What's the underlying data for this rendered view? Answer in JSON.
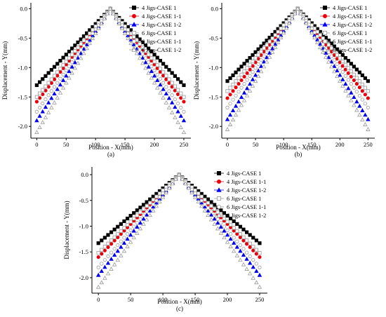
{
  "figure": {
    "colors": {
      "black": "#000000",
      "red": "#e8000b",
      "blue": "#0000ee",
      "hollow": "#9a9a9a"
    }
  },
  "chart_data": [
    {
      "type": "scatter",
      "label": "(a)",
      "xlabel": "Position - X(mm)",
      "ylabel": "Displacement - Y(mm)",
      "xlim": [
        -10,
        262
      ],
      "ylim": [
        -2.2,
        0.1
      ],
      "xticks": [
        0,
        50,
        100,
        150,
        200,
        250
      ],
      "yticks": [
        0.0,
        -0.5,
        -1.0,
        -1.5,
        -2.0
      ],
      "xtick_labels": [
        "0",
        "50",
        "100",
        "150",
        "200",
        "250"
      ],
      "ytick_labels": [
        "0.0",
        "-0.5",
        "-1.0",
        "-1.5",
        "-2.0"
      ],
      "legend": "top-right",
      "peak_x": 125,
      "series": [
        {
          "name": "4 Jigs-CASE 1",
          "marker": "square",
          "fill": "black",
          "edge_value": -1.3,
          "peak_value": 0.0
        },
        {
          "name": "4 Jigs-CASE 1-1",
          "marker": "circle",
          "fill": "red",
          "edge_value": -1.58,
          "peak_value": 0.0
        },
        {
          "name": "4 Jigs-CASE 1-2",
          "marker": "triangle",
          "fill": "blue",
          "edge_value": -1.9,
          "peak_value": 0.0
        },
        {
          "name": "6 Jigs-CASE 1",
          "marker": "square",
          "fill": "none",
          "edge_value": -1.5,
          "peak_value": 0.0
        },
        {
          "name": "6 Jigs-CASE 1-1",
          "marker": "circle",
          "fill": "none",
          "edge_value": -1.75,
          "peak_value": 0.0
        },
        {
          "name": "6 Jigs-CASE 1-2",
          "marker": "triangle",
          "fill": "none",
          "edge_value": -2.1,
          "peak_value": 0.0
        }
      ]
    },
    {
      "type": "scatter",
      "label": "(b)",
      "xlabel": "Position - X(mm)",
      "ylabel": "Displacement - Y(mm)",
      "xlim": [
        -10,
        262
      ],
      "ylim": [
        -2.2,
        0.1
      ],
      "xticks": [
        0,
        50,
        100,
        150,
        200,
        250
      ],
      "yticks": [
        0.0,
        -0.5,
        -1.0,
        -1.5,
        -2.0
      ],
      "xtick_labels": [
        "0",
        "50",
        "100",
        "150",
        "200",
        "250"
      ],
      "ytick_labels": [
        "0.0",
        "-0.5",
        "-1.0",
        "-1.5",
        "-2.0"
      ],
      "legend": "top-right",
      "peak_x": 125,
      "series": [
        {
          "name": "4 Jigs-CASE 1",
          "marker": "square",
          "fill": "black",
          "edge_value": -1.23,
          "peak_value": 0.0
        },
        {
          "name": "4 Jigs-CASE 1-1",
          "marker": "circle",
          "fill": "red",
          "edge_value": -1.52,
          "peak_value": 0.0
        },
        {
          "name": "4 Jigs-CASE 1-2",
          "marker": "triangle",
          "fill": "blue",
          "edge_value": -1.88,
          "peak_value": 0.0
        },
        {
          "name": "6 Jigs-CASE 1",
          "marker": "square",
          "fill": "none",
          "edge_value": -1.4,
          "peak_value": 0.0
        },
        {
          "name": "6 Jigs-CASE 1-1",
          "marker": "circle",
          "fill": "none",
          "edge_value": -1.68,
          "peak_value": 0.0
        },
        {
          "name": "6 Jigs-CASE 1-2",
          "marker": "triangle",
          "fill": "none",
          "edge_value": -2.05,
          "peak_value": 0.0
        }
      ]
    },
    {
      "type": "scatter",
      "label": "(c)",
      "xlabel": "Position - X(mm)",
      "ylabel": "Displacement - Y(mm)",
      "xlim": [
        -10,
        262
      ],
      "ylim": [
        -2.3,
        0.15
      ],
      "xticks": [
        0,
        50,
        100,
        150,
        200,
        250
      ],
      "yticks": [
        0.0,
        -0.5,
        -1.0,
        -1.5,
        -2.0
      ],
      "xtick_labels": [
        "0",
        "50",
        "100",
        "150",
        "200",
        "250"
      ],
      "ytick_labels": [
        "0.0",
        "-0.5",
        "-1.0",
        "-1.5",
        "-2.0"
      ],
      "legend": "top-right",
      "peak_x": 125,
      "series": [
        {
          "name": "4 Jigs-CASE 1",
          "marker": "square",
          "fill": "black",
          "edge_value": -1.33,
          "peak_value": 0.0
        },
        {
          "name": "4 Jigs-CASE 1-1",
          "marker": "circle",
          "fill": "red",
          "edge_value": -1.6,
          "peak_value": 0.0
        },
        {
          "name": "4 Jigs-CASE 1-2",
          "marker": "triangle",
          "fill": "blue",
          "edge_value": -1.95,
          "peak_value": 0.0
        },
        {
          "name": "6 Jigs-CASE 1",
          "marker": "square",
          "fill": "none",
          "edge_value": -1.52,
          "peak_value": 0.0
        },
        {
          "name": "6 Jigs-CASE 1-1",
          "marker": "circle",
          "fill": "none",
          "edge_value": -1.8,
          "peak_value": 0.0
        },
        {
          "name": "6 Jigs-CASE 1-2",
          "marker": "triangle",
          "fill": "none",
          "edge_value": -2.18,
          "peak_value": 0.0
        }
      ]
    }
  ]
}
